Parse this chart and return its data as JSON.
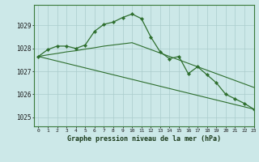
{
  "title": "Graphe pression niveau de la mer (hPa)",
  "background_color": "#cce8e8",
  "grid_color": "#aacccc",
  "line_color": "#2d6e2d",
  "xlim": [
    -0.5,
    23
  ],
  "ylim": [
    1024.6,
    1029.9
  ],
  "yticks": [
    1025,
    1026,
    1027,
    1028,
    1029
  ],
  "xticks": [
    0,
    1,
    2,
    3,
    4,
    5,
    6,
    7,
    8,
    9,
    10,
    11,
    12,
    13,
    14,
    15,
    16,
    17,
    18,
    19,
    20,
    21,
    22,
    23
  ],
  "series1_x": [
    0,
    1,
    2,
    3,
    4,
    5,
    6,
    7,
    8,
    9,
    10,
    11,
    12,
    13,
    14,
    15,
    16,
    17,
    18,
    19,
    20,
    21,
    22,
    23
  ],
  "series1_y": [
    1027.65,
    1027.95,
    1028.1,
    1028.1,
    1028.0,
    1028.15,
    1028.75,
    1029.05,
    1029.15,
    1029.35,
    1029.5,
    1029.3,
    1028.5,
    1027.85,
    1027.55,
    1027.65,
    1026.9,
    1027.2,
    1026.85,
    1026.5,
    1026.0,
    1025.8,
    1025.6,
    1025.35
  ],
  "series2_x": [
    0,
    1,
    2,
    3,
    4,
    5,
    6,
    7,
    8,
    9,
    10,
    11,
    12,
    13,
    14,
    15,
    16,
    17,
    18,
    19,
    20,
    21,
    22,
    23
  ],
  "series2_y": [
    1027.65,
    1027.72,
    1027.78,
    1027.85,
    1027.9,
    1027.97,
    1028.03,
    1028.1,
    1028.15,
    1028.2,
    1028.25,
    1028.1,
    1027.95,
    1027.8,
    1027.65,
    1027.5,
    1027.35,
    1027.2,
    1027.05,
    1026.9,
    1026.75,
    1026.6,
    1026.45,
    1026.3
  ],
  "series3_x": [
    0,
    23
  ],
  "series3_y": [
    1027.65,
    1025.35
  ]
}
